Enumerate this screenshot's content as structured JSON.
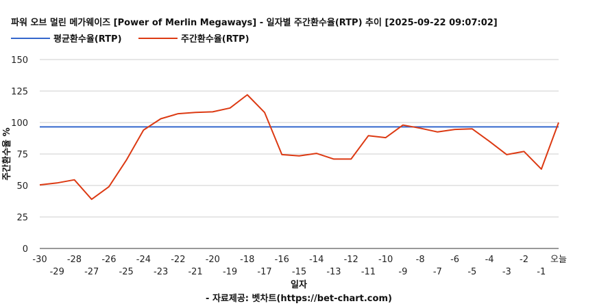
{
  "chart_data": {
    "type": "line",
    "title": "파워 오브 멀린 메가웨이즈 [Power of Merlin Megaways] - 일자별 주간환수율(RTP) 추이 [2025-09-22 09:07:02]",
    "xlabel": "일자",
    "ylabel": "주간환수율 %",
    "source": "- 자료제공: 벳차트(https://bet-chart.com)",
    "ylim": [
      0,
      150
    ],
    "yticks": [
      0,
      25,
      50,
      75,
      100,
      125,
      150
    ],
    "grid": true,
    "legend_position": "top-left",
    "x": [
      "-30",
      "-29",
      "-28",
      "-27",
      "-26",
      "-25",
      "-24",
      "-23",
      "-22",
      "-21",
      "-20",
      "-19",
      "-18",
      "-17",
      "-16",
      "-15",
      "-14",
      "-13",
      "-12",
      "-11",
      "-10",
      "-9",
      "-8",
      "-7",
      "-6",
      "-5",
      "-4",
      "-3",
      "-2",
      "-1",
      "오늘"
    ],
    "series": [
      {
        "name": "평균환수율(RTP)",
        "color": "#3366cc",
        "values": [
          96.5,
          96.5,
          96.5,
          96.5,
          96.5,
          96.5,
          96.5,
          96.5,
          96.5,
          96.5,
          96.5,
          96.5,
          96.5,
          96.5,
          96.5,
          96.5,
          96.5,
          96.5,
          96.5,
          96.5,
          96.5,
          96.5,
          96.5,
          96.5,
          96.5,
          96.5,
          96.5,
          96.5,
          96.5,
          96.5,
          96.5
        ]
      },
      {
        "name": "주간환수율(RTP)",
        "color": "#dc3912",
        "values": [
          50.5,
          52,
          54.5,
          39,
          49,
          70,
          94,
          103,
          107,
          108,
          108.5,
          111.5,
          122,
          108,
          74.5,
          73.5,
          75.5,
          71,
          71,
          89.5,
          88,
          98,
          95.5,
          92.5,
          94.5,
          95,
          85,
          74.5,
          77,
          63,
          100
        ]
      }
    ]
  }
}
